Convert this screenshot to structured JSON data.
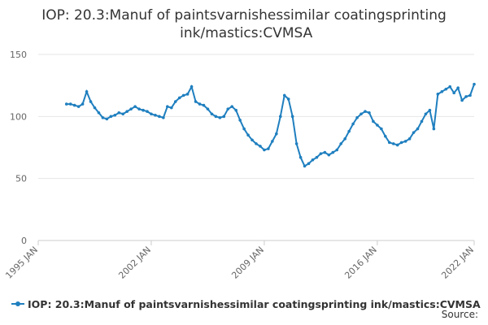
{
  "chart_data": {
    "type": "line",
    "title": "IOP: 20.3:Manuf of paintsvarnishessimilar coatingsprinting ink/mastics:CVMSA",
    "source": "Source:",
    "x": [
      "1996-10",
      "1997-01",
      "1997-04",
      "1997-07",
      "1997-10",
      "1998-01",
      "1998-04",
      "1998-07",
      "1998-10",
      "1999-01",
      "1999-04",
      "1999-07",
      "1999-10",
      "2000-01",
      "2000-04",
      "2000-07",
      "2000-10",
      "2001-01",
      "2001-04",
      "2001-07",
      "2001-10",
      "2002-01",
      "2002-04",
      "2002-07",
      "2002-10",
      "2003-01",
      "2003-04",
      "2003-07",
      "2003-10",
      "2004-01",
      "2004-04",
      "2004-07",
      "2004-10",
      "2005-01",
      "2005-04",
      "2005-07",
      "2005-10",
      "2006-01",
      "2006-04",
      "2006-07",
      "2006-10",
      "2007-01",
      "2007-04",
      "2007-07",
      "2007-10",
      "2008-01",
      "2008-04",
      "2008-07",
      "2008-10",
      "2009-01",
      "2009-04",
      "2009-07",
      "2009-10",
      "2010-01",
      "2010-04",
      "2010-07",
      "2010-10",
      "2011-01",
      "2011-04",
      "2011-07",
      "2011-10",
      "2012-01",
      "2012-04",
      "2012-07",
      "2012-10",
      "2013-01",
      "2013-04",
      "2013-07",
      "2013-10",
      "2014-01",
      "2014-04",
      "2014-07",
      "2014-10",
      "2015-01",
      "2015-04",
      "2015-07",
      "2015-10",
      "2016-01",
      "2016-04",
      "2016-07",
      "2016-10",
      "2017-01",
      "2017-04",
      "2017-07",
      "2017-10",
      "2018-01",
      "2018-04",
      "2018-07",
      "2018-10",
      "2019-01",
      "2019-04",
      "2019-07",
      "2019-10",
      "2020-01",
      "2020-04",
      "2020-07",
      "2020-10",
      "2021-01",
      "2021-04",
      "2021-07",
      "2021-10",
      "2022-01"
    ],
    "series": [
      {
        "name": "IOP: 20.3:Manuf of paintsvarnishessimilar coatingsprinting ink/mastics:CVMSA",
        "color": "#1f7fbf",
        "values": [
          110,
          110,
          109,
          108,
          110,
          120,
          112,
          107,
          103,
          99,
          98,
          100,
          101,
          103,
          102,
          104,
          106,
          108,
          106,
          105,
          104,
          102,
          101,
          100,
          99,
          108,
          107,
          112,
          115,
          117,
          118,
          124,
          112,
          110,
          109,
          106,
          102,
          100,
          99,
          100,
          106,
          108,
          105,
          97,
          90,
          85,
          81,
          78,
          76,
          73,
          74,
          80,
          86,
          100,
          117,
          114,
          100,
          78,
          67,
          60,
          62,
          65,
          67,
          70,
          71,
          69,
          71,
          73,
          78,
          82,
          88,
          94,
          99,
          102,
          104,
          103,
          96,
          93,
          90,
          84,
          79,
          78,
          77,
          79,
          80,
          82,
          87,
          90,
          96,
          102,
          105,
          90,
          118,
          120,
          122,
          124,
          119,
          123,
          113,
          116,
          117,
          126
        ]
      }
    ],
    "xlim": [
      "1995-01",
      "2022-01"
    ],
    "xticks": [
      {
        "value": "1995-01",
        "label": "1995 JAN"
      },
      {
        "value": "2002-01",
        "label": "2002 JAN"
      },
      {
        "value": "2009-01",
        "label": "2009 JAN"
      },
      {
        "value": "2016-01",
        "label": "2016 JAN"
      },
      {
        "value": "2022-01",
        "label": "2022 JAN"
      }
    ],
    "ylim": [
      0,
      150
    ],
    "yticks": [
      0,
      50,
      100,
      150
    ],
    "grid": true
  }
}
